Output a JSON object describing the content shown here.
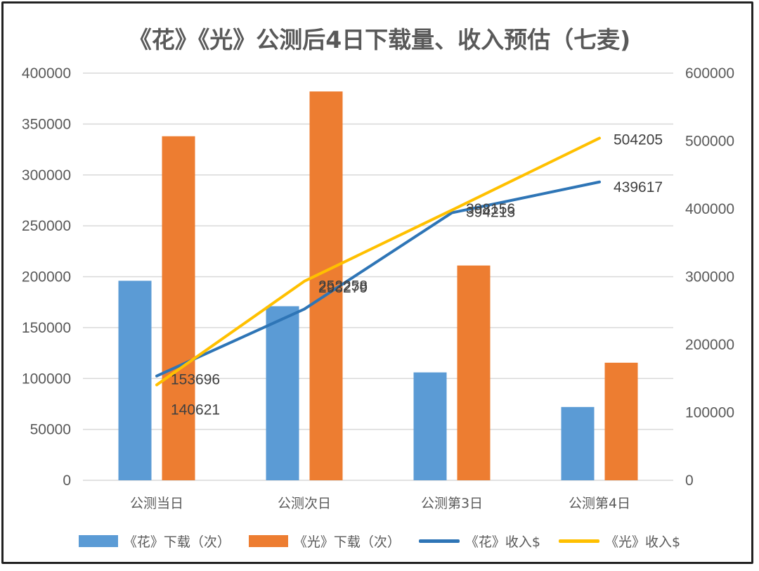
{
  "colors": {
    "series1": "#5B9BD5",
    "series2": "#ED7D31",
    "series3": "#2E75B6",
    "series4": "#FFC000",
    "grid": "#D9D9D9",
    "text": "#595959"
  },
  "chart_data": {
    "type": "bar",
    "title": "《花》《光》公测后4日下载量、收入预估（七麦)",
    "categories": [
      "公测当日",
      "公测次日",
      "公测第3日",
      "公测第4日"
    ],
    "y_left": {
      "ylim": [
        0,
        400000
      ],
      "ticks": [
        "0",
        "50000",
        "100000",
        "150000",
        "200000",
        "250000",
        "300000",
        "350000",
        "400000"
      ]
    },
    "y_right": {
      "ylim": [
        0,
        600000
      ],
      "ticks": [
        "0",
        "100000",
        "200000",
        "300000",
        "400000",
        "500000",
        "600000"
      ]
    },
    "grid": true,
    "legend_position": "bottom",
    "series": [
      {
        "name": "《花》下载（次）",
        "type": "bar",
        "axis": "left",
        "values": [
          196000,
          171000,
          106000,
          72000
        ]
      },
      {
        "name": "《光》下载（次）",
        "type": "bar",
        "axis": "left",
        "values": [
          338000,
          382000,
          211000,
          115500
        ]
      },
      {
        "name": "《花》收入$",
        "type": "line",
        "axis": "right",
        "values": [
          153696,
          252258,
          394213,
          439617
        ],
        "labels": [
          "153696",
          "252258",
          "394213",
          "439617"
        ]
      },
      {
        "name": "《光》收入$",
        "type": "line",
        "axis": "right",
        "values": [
          140621,
          293279,
          398156,
          504205
        ],
        "labels": [
          "140621",
          "293279",
          "398156",
          "504205"
        ]
      }
    ]
  }
}
